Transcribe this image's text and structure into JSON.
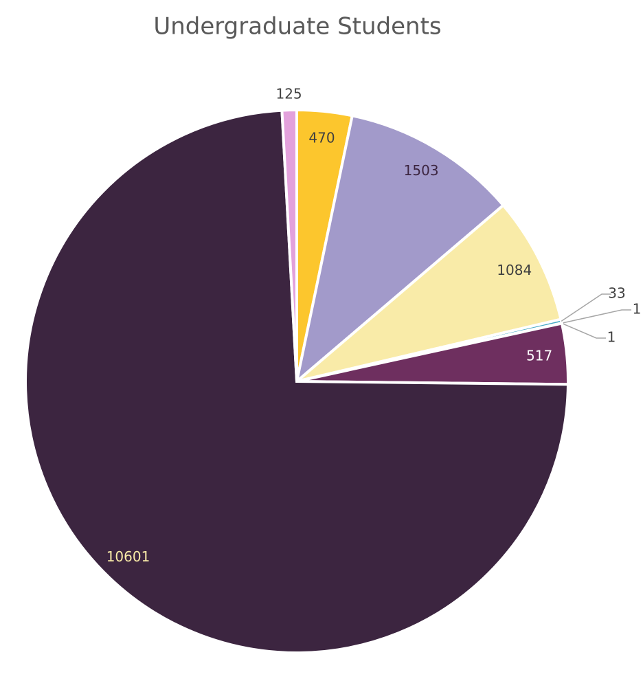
{
  "chart_data": {
    "type": "pie",
    "title": "Undergraduate Students",
    "values": [
      470,
      1503,
      1084,
      33,
      1,
      1,
      517,
      10601,
      125
    ],
    "colors": [
      "#fcc62d",
      "#a29aca",
      "#f9eba8",
      "#4bacc6",
      "#2e75b6",
      "#5b9bd5",
      "#6e2f5f",
      "#3c2540",
      "#e3a1dc"
    ]
  }
}
